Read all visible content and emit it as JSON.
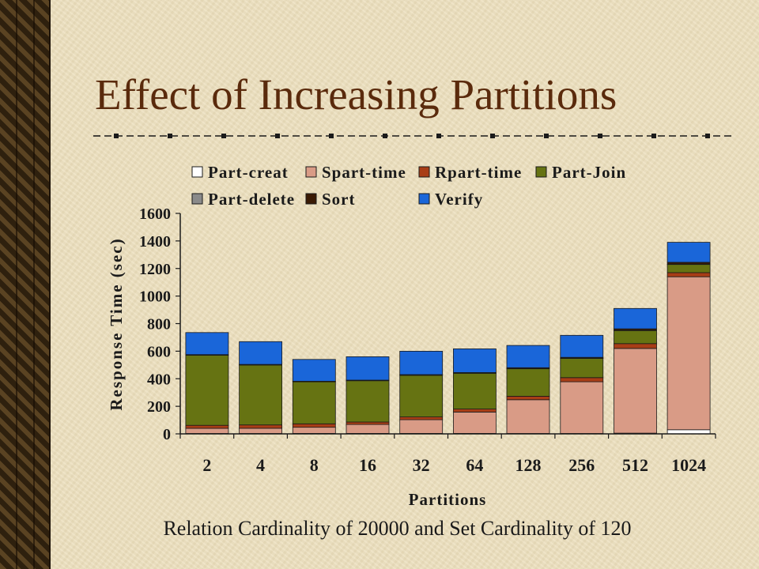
{
  "slide": {
    "title": "Effect of Increasing Partitions",
    "caption": "Relation Cardinality of 20000 and Set Cardinality of 120"
  },
  "chart_data": {
    "type": "bar",
    "stacked": true,
    "categories": [
      "2",
      "4",
      "8",
      "16",
      "32",
      "64",
      "128",
      "256",
      "512",
      "1024"
    ],
    "xlabel": "Partitions",
    "ylabel": "Response Time (sec)",
    "ylim": [
      0,
      1600
    ],
    "yticks": [
      0,
      200,
      400,
      600,
      800,
      1000,
      1200,
      1400,
      1600
    ],
    "grid": false,
    "legend_position": "top",
    "series": [
      {
        "name": "Part-creat",
        "color": "#ffffff",
        "values": [
          3,
          3,
          3,
          3,
          3,
          3,
          3,
          3,
          5,
          30
        ]
      },
      {
        "name": "Spart-time",
        "color": "#d99b86",
        "values": [
          37,
          38,
          45,
          65,
          100,
          155,
          245,
          375,
          615,
          1110
        ]
      },
      {
        "name": "Rpart-time",
        "color": "#a83d16",
        "values": [
          22,
          24,
          25,
          18,
          20,
          22,
          25,
          30,
          35,
          30
        ]
      },
      {
        "name": "Part-Join",
        "color": "#667312",
        "values": [
          508,
          435,
          305,
          300,
          302,
          260,
          200,
          140,
          95,
          60
        ]
      },
      {
        "name": "Part-delete",
        "color": "#8a8a8a",
        "values": [
          3,
          2,
          2,
          2,
          2,
          2,
          2,
          2,
          2,
          2
        ]
      },
      {
        "name": "Sort",
        "color": "#3a1a04",
        "values": [
          2,
          2,
          2,
          2,
          3,
          3,
          5,
          5,
          10,
          13
        ]
      },
      {
        "name": "Verify",
        "color": "#1a66d9",
        "values": [
          160,
          165,
          158,
          170,
          170,
          172,
          162,
          160,
          148,
          145
        ]
      }
    ]
  }
}
